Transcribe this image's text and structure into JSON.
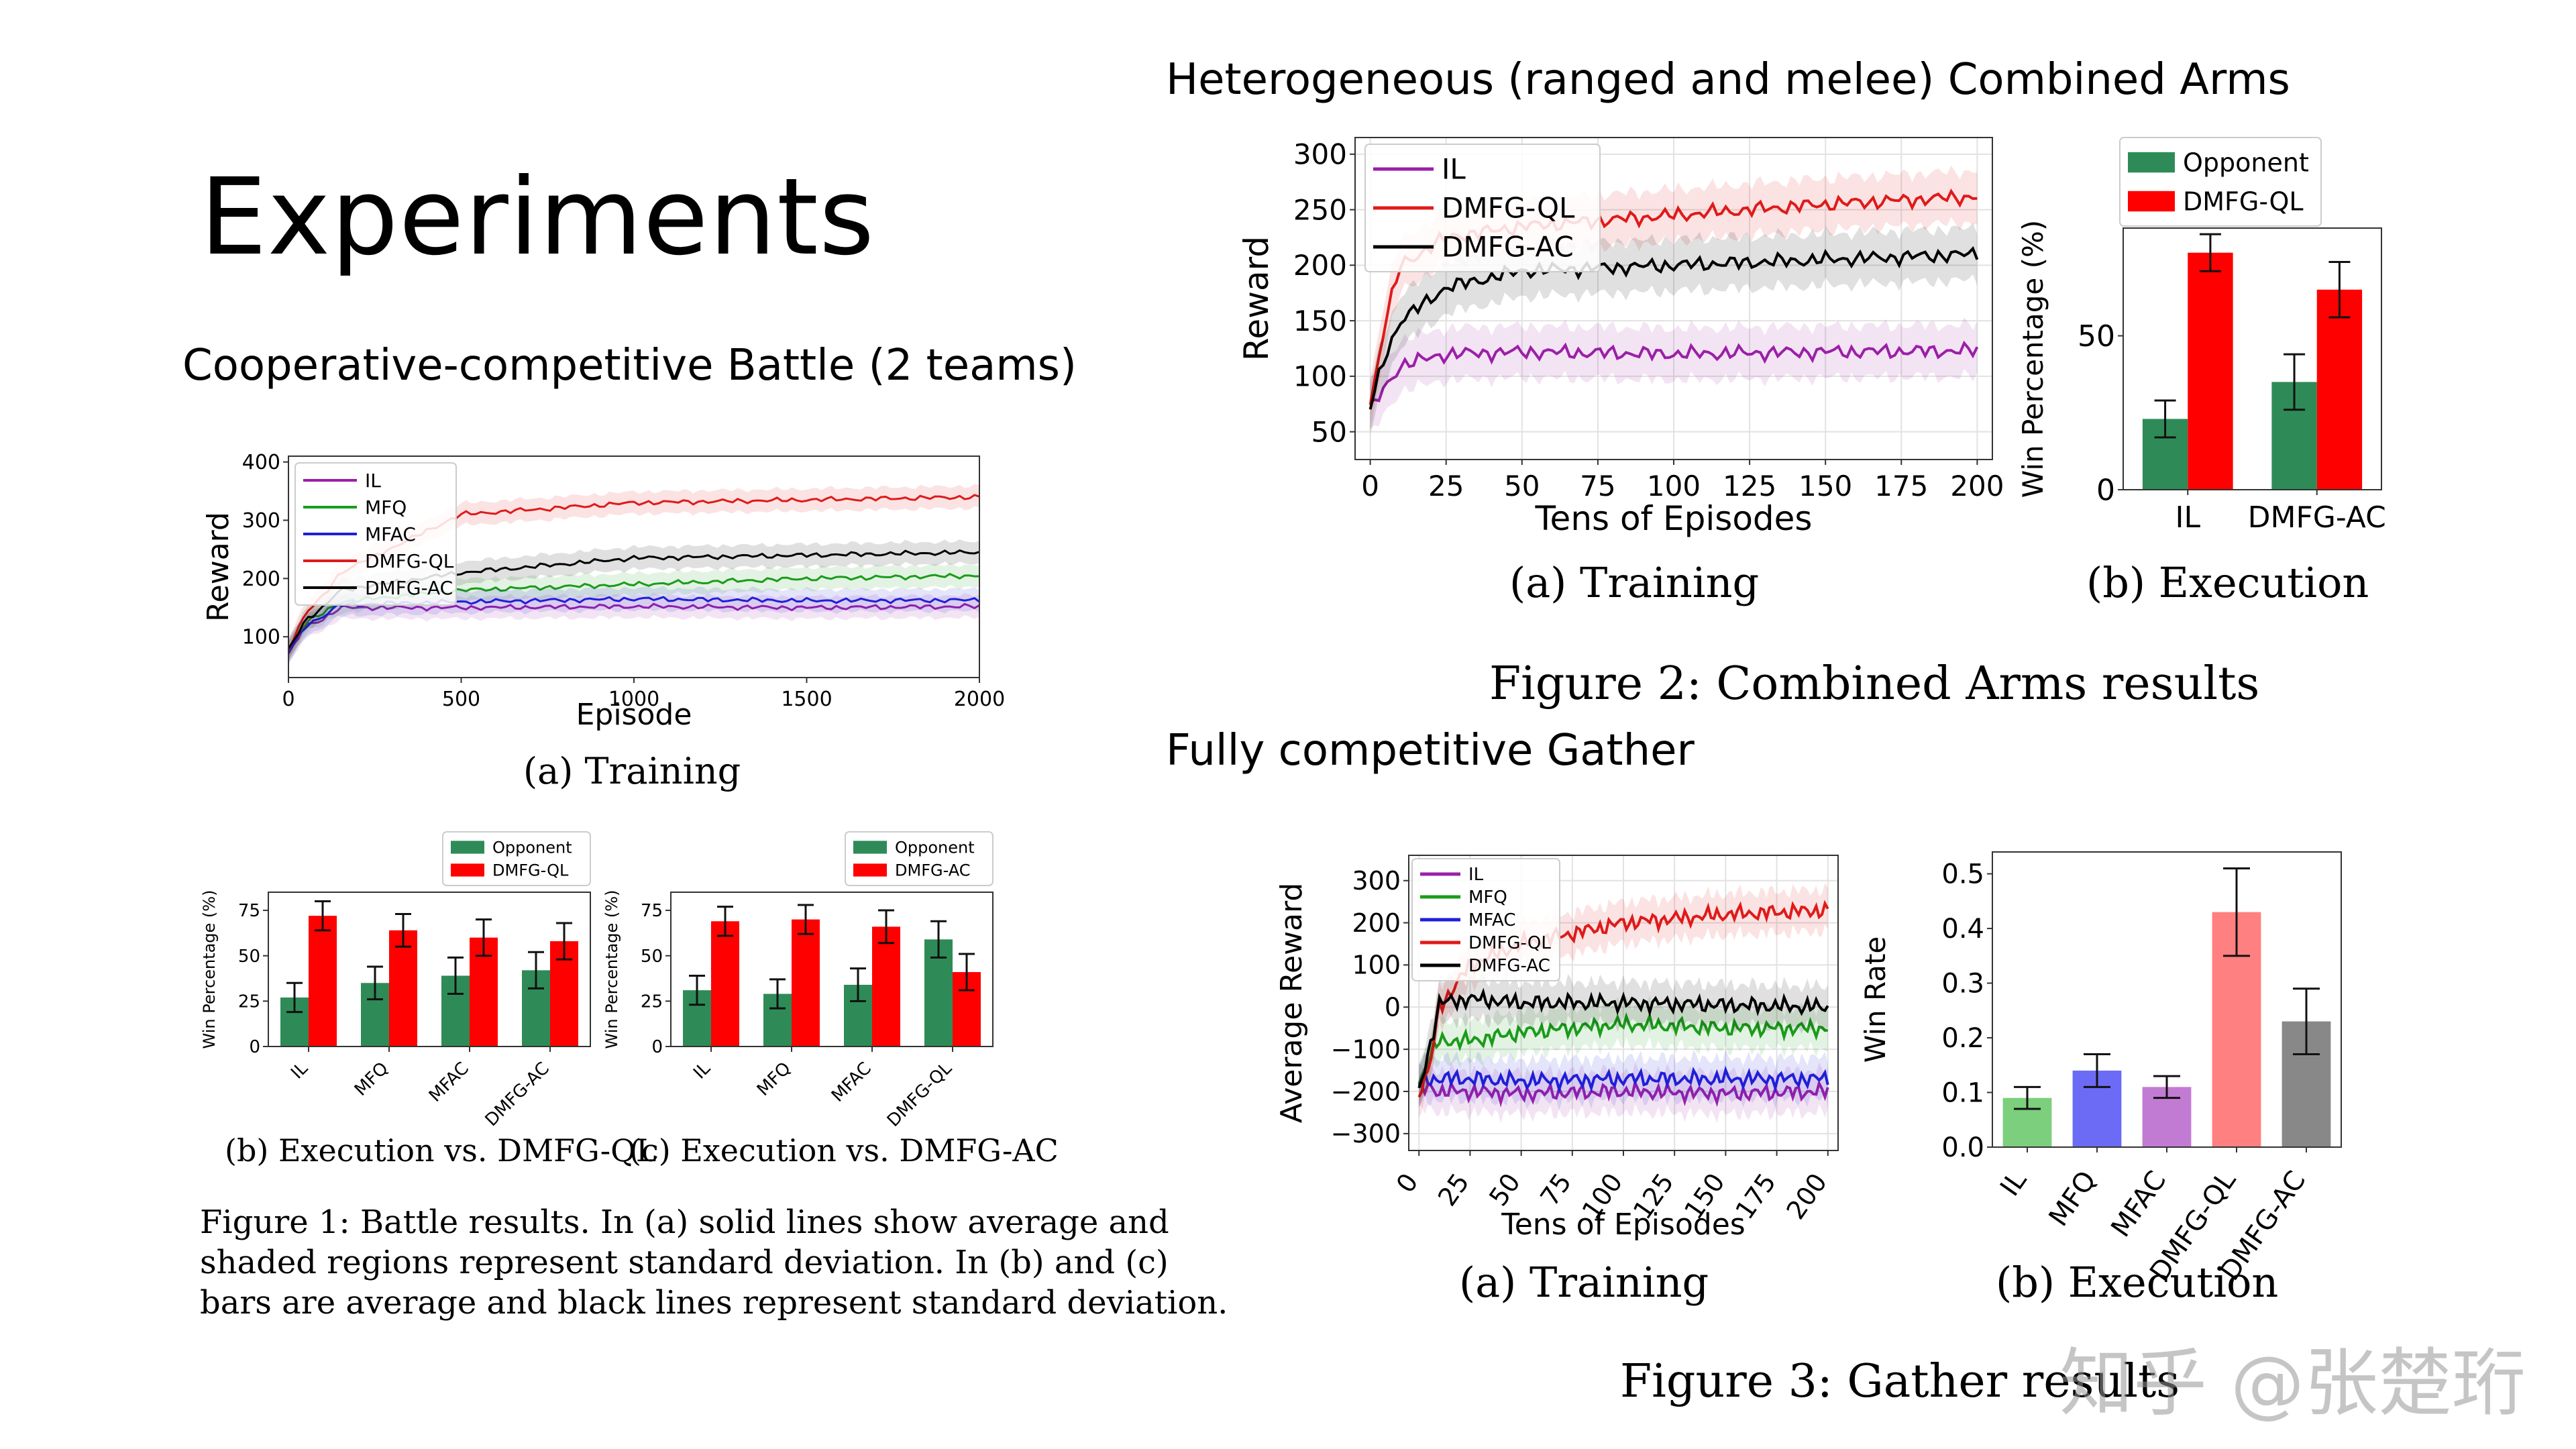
{
  "slide": {
    "title": "Experiments",
    "section_left": "Cooperative-competitive Battle (2 teams)",
    "section_right_top": "Heterogeneous (ranged and melee) Combined Arms",
    "section_right_bottom": "Fully competitive Gather",
    "watermark": "知乎 @张楚珩"
  },
  "captions": {
    "battle_a": "(a)  Training",
    "battle_b": "(b) Execution vs. DMFG-QL",
    "battle_c": "(c) Execution vs. DMFG-AC",
    "figure1_line1": "Figure 1: Battle results. In (a) solid lines show average and",
    "figure1_line2": "shaded regions represent standard deviation. In (b) and (c)",
    "figure1_line3": "bars are average and black lines represent standard deviation.",
    "arms_a": "(a)  Training",
    "arms_b": "(b) Execution",
    "figure2": "Figure 2: Combined Arms results",
    "gather_a": "(a)  Training",
    "gather_b": "(b) Execution",
    "figure3": "Figure 3: Gather results"
  },
  "colors": {
    "IL": "#9b1fa8",
    "MFQ": "#1a9c1a",
    "MFAC": "#1f1fd8",
    "DMFG-QL": "#e01a1a",
    "DMFG-AC": "#000000",
    "opponent_green": "#2e8b57",
    "red": "#ff0000"
  },
  "chart_data": [
    {
      "id": "battle_training",
      "type": "line",
      "xlabel": "Episode",
      "ylabel": "Reward",
      "xlim": [
        0,
        2000
      ],
      "ylim": [
        30,
        410
      ],
      "xticks": [
        "0",
        "500",
        "1000",
        "1500",
        "2000"
      ],
      "yticks": [
        "100",
        "200",
        "300",
        "400"
      ],
      "legend": "top-left",
      "series": [
        {
          "name": "IL",
          "x": [
            0,
            50,
            100,
            150,
            500,
            1000,
            1500,
            2000
          ],
          "values": [
            70,
            120,
            130,
            150,
            150,
            152,
            150,
            152
          ]
        },
        {
          "name": "MFQ",
          "x": [
            0,
            50,
            100,
            150,
            500,
            1000,
            1500,
            2000
          ],
          "values": [
            75,
            125,
            140,
            160,
            180,
            190,
            200,
            205
          ]
        },
        {
          "name": "MFAC",
          "x": [
            0,
            50,
            100,
            150,
            500,
            1000,
            1500,
            2000
          ],
          "values": [
            72,
            120,
            135,
            155,
            160,
            165,
            162,
            163
          ]
        },
        {
          "name": "DMFG-QL",
          "x": [
            0,
            50,
            100,
            150,
            500,
            1000,
            1500,
            2000
          ],
          "values": [
            80,
            140,
            170,
            210,
            310,
            330,
            335,
            340
          ]
        },
        {
          "name": "DMFG-AC",
          "x": [
            0,
            50,
            100,
            150,
            500,
            1000,
            1500,
            2000
          ],
          "values": [
            78,
            130,
            150,
            180,
            210,
            235,
            240,
            245
          ]
        }
      ]
    },
    {
      "id": "battle_exec_ql",
      "type": "bar",
      "ylabel": "Win Percentage (%)",
      "ylim": [
        0,
        85
      ],
      "yticks": [
        "0",
        "25",
        "50",
        "75"
      ],
      "categories": [
        "IL",
        "MFQ",
        "MFAC",
        "DMFG-AC"
      ],
      "legend": "top-right",
      "series": [
        {
          "name": "Opponent",
          "values": [
            27,
            35,
            39,
            42
          ],
          "err": [
            8,
            9,
            10,
            10
          ]
        },
        {
          "name": "DMFG-QL",
          "values": [
            72,
            64,
            60,
            58
          ],
          "err": [
            8,
            9,
            10,
            10
          ]
        }
      ]
    },
    {
      "id": "battle_exec_ac",
      "type": "bar",
      "ylabel": "Win Percentage (%)",
      "ylim": [
        0,
        85
      ],
      "yticks": [
        "0",
        "25",
        "50",
        "75"
      ],
      "categories": [
        "IL",
        "MFQ",
        "MFAC",
        "DMFG-QL"
      ],
      "legend": "top-right",
      "series": [
        {
          "name": "Opponent",
          "values": [
            31,
            29,
            34,
            59
          ],
          "err": [
            8,
            8,
            9,
            10
          ]
        },
        {
          "name": "DMFG-AC",
          "values": [
            69,
            70,
            66,
            41
          ],
          "err": [
            8,
            8,
            9,
            10
          ]
        }
      ]
    },
    {
      "id": "arms_training",
      "type": "line",
      "xlabel": "Tens of Episodes",
      "ylabel": "Reward",
      "xlim": [
        -5,
        205
      ],
      "ylim": [
        25,
        315
      ],
      "xticks": [
        "0",
        "25",
        "50",
        "75",
        "100",
        "125",
        "150",
        "175",
        "200"
      ],
      "yticks": [
        "50",
        "100",
        "150",
        "200",
        "250",
        "300"
      ],
      "legend": "top-left",
      "series": [
        {
          "name": "IL",
          "x": [
            0,
            5,
            10,
            25,
            50,
            100,
            150,
            200
          ],
          "values": [
            70,
            90,
            110,
            120,
            122,
            120,
            122,
            123
          ]
        },
        {
          "name": "DMFG-QL",
          "x": [
            0,
            5,
            10,
            25,
            50,
            100,
            150,
            200
          ],
          "values": [
            75,
            150,
            200,
            225,
            235,
            245,
            255,
            262
          ]
        },
        {
          "name": "DMFG-AC",
          "x": [
            0,
            5,
            10,
            25,
            50,
            100,
            150,
            200
          ],
          "values": [
            72,
            120,
            150,
            180,
            195,
            200,
            205,
            210
          ]
        }
      ]
    },
    {
      "id": "arms_execution",
      "type": "bar",
      "ylabel": "Win Percentage (%)",
      "ylim": [
        0,
        85
      ],
      "yticks": [
        "0",
        "50"
      ],
      "categories": [
        "IL",
        "DMFG-AC"
      ],
      "legend": "top-left",
      "series": [
        {
          "name": "Opponent",
          "values": [
            23,
            35
          ],
          "err": [
            6,
            9
          ]
        },
        {
          "name": "DMFG-QL",
          "values": [
            77,
            65
          ],
          "err": [
            6,
            9
          ]
        }
      ]
    },
    {
      "id": "gather_training",
      "type": "line",
      "xlabel": "Tens of Episodes",
      "ylabel": "Average Reward",
      "xlim": [
        -5,
        205
      ],
      "ylim": [
        -340,
        360
      ],
      "xticks": [
        "0",
        "25",
        "50",
        "75",
        "100",
        "125",
        "150",
        "175",
        "200"
      ],
      "yticks": [
        "-300",
        "-200",
        "-100",
        "0",
        "100",
        "200",
        "300"
      ],
      "legend": "top-left",
      "series": [
        {
          "name": "IL",
          "x": [
            0,
            5,
            10,
            25,
            50,
            100,
            150,
            200
          ],
          "values": [
            -200,
            -190,
            -200,
            -200,
            -205,
            -200,
            -205,
            -200
          ]
        },
        {
          "name": "MFQ",
          "x": [
            0,
            5,
            10,
            25,
            50,
            100,
            150,
            200
          ],
          "values": [
            -180,
            -120,
            -80,
            -80,
            -60,
            -40,
            -50,
            -50
          ]
        },
        {
          "name": "MFAC",
          "x": [
            0,
            5,
            10,
            25,
            50,
            100,
            150,
            200
          ],
          "values": [
            -180,
            -170,
            -170,
            -170,
            -175,
            -170,
            -170,
            -170
          ]
        },
        {
          "name": "DMFG-QL",
          "x": [
            0,
            5,
            10,
            25,
            50,
            100,
            150,
            200
          ],
          "values": [
            -200,
            -150,
            0,
            100,
            150,
            200,
            220,
            230
          ]
        },
        {
          "name": "DMFG-AC",
          "x": [
            0,
            5,
            10,
            25,
            50,
            100,
            150,
            200
          ],
          "values": [
            -200,
            -100,
            10,
            20,
            10,
            10,
            5,
            0
          ]
        }
      ]
    },
    {
      "id": "gather_execution",
      "type": "bar",
      "ylabel": "Win Rate",
      "ylim": [
        0,
        0.54
      ],
      "yticks": [
        "0.0",
        "0.1",
        "0.2",
        "0.3",
        "0.4",
        "0.5"
      ],
      "categories": [
        "IL",
        "MFQ",
        "MFAC",
        "DMFG-QL",
        "DMFG-AC"
      ],
      "values": [
        0.09,
        0.14,
        0.11,
        0.43,
        0.23
      ],
      "err": [
        0.02,
        0.03,
        0.02,
        0.08,
        0.06
      ],
      "bar_colors": [
        "#7ccf7c",
        "#6b6bf5",
        "#c27bd3",
        "#ff8080",
        "#888888"
      ]
    }
  ]
}
